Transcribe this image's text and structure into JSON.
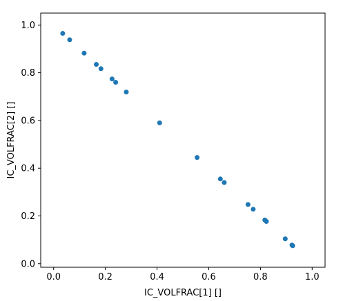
{
  "chart_data": {
    "type": "scatter",
    "title": "",
    "xlabel": "IC_VOLFRAC[1] []",
    "ylabel": "IC_VOLFRAC[2] []",
    "xlim": [
      -0.05,
      1.05
    ],
    "ylim": [
      -0.015,
      1.05
    ],
    "xticks": [
      0.0,
      0.2,
      0.4,
      0.6,
      0.8,
      1.0
    ],
    "xtick_labels": [
      "0.0",
      "0.2",
      "0.4",
      "0.6",
      "0.8",
      "1.0"
    ],
    "yticks": [
      0.0,
      0.2,
      0.4,
      0.6,
      0.8,
      1.0
    ],
    "ytick_labels": [
      "0.0",
      "0.2",
      "0.4",
      "0.6",
      "0.8",
      "1.0"
    ],
    "grid": false,
    "legend": "none",
    "marker_color": "#1f77b4",
    "points": [
      {
        "x": 0.035,
        "y": 0.965
      },
      {
        "x": 0.062,
        "y": 0.938
      },
      {
        "x": 0.118,
        "y": 0.882
      },
      {
        "x": 0.165,
        "y": 0.835
      },
      {
        "x": 0.183,
        "y": 0.817
      },
      {
        "x": 0.226,
        "y": 0.774
      },
      {
        "x": 0.24,
        "y": 0.76
      },
      {
        "x": 0.281,
        "y": 0.719
      },
      {
        "x": 0.41,
        "y": 0.59
      },
      {
        "x": 0.555,
        "y": 0.445
      },
      {
        "x": 0.645,
        "y": 0.355
      },
      {
        "x": 0.66,
        "y": 0.34
      },
      {
        "x": 0.752,
        "y": 0.248
      },
      {
        "x": 0.772,
        "y": 0.228
      },
      {
        "x": 0.817,
        "y": 0.183
      },
      {
        "x": 0.823,
        "y": 0.177
      },
      {
        "x": 0.896,
        "y": 0.104
      },
      {
        "x": 0.922,
        "y": 0.078
      },
      {
        "x": 0.925,
        "y": 0.075
      }
    ]
  }
}
